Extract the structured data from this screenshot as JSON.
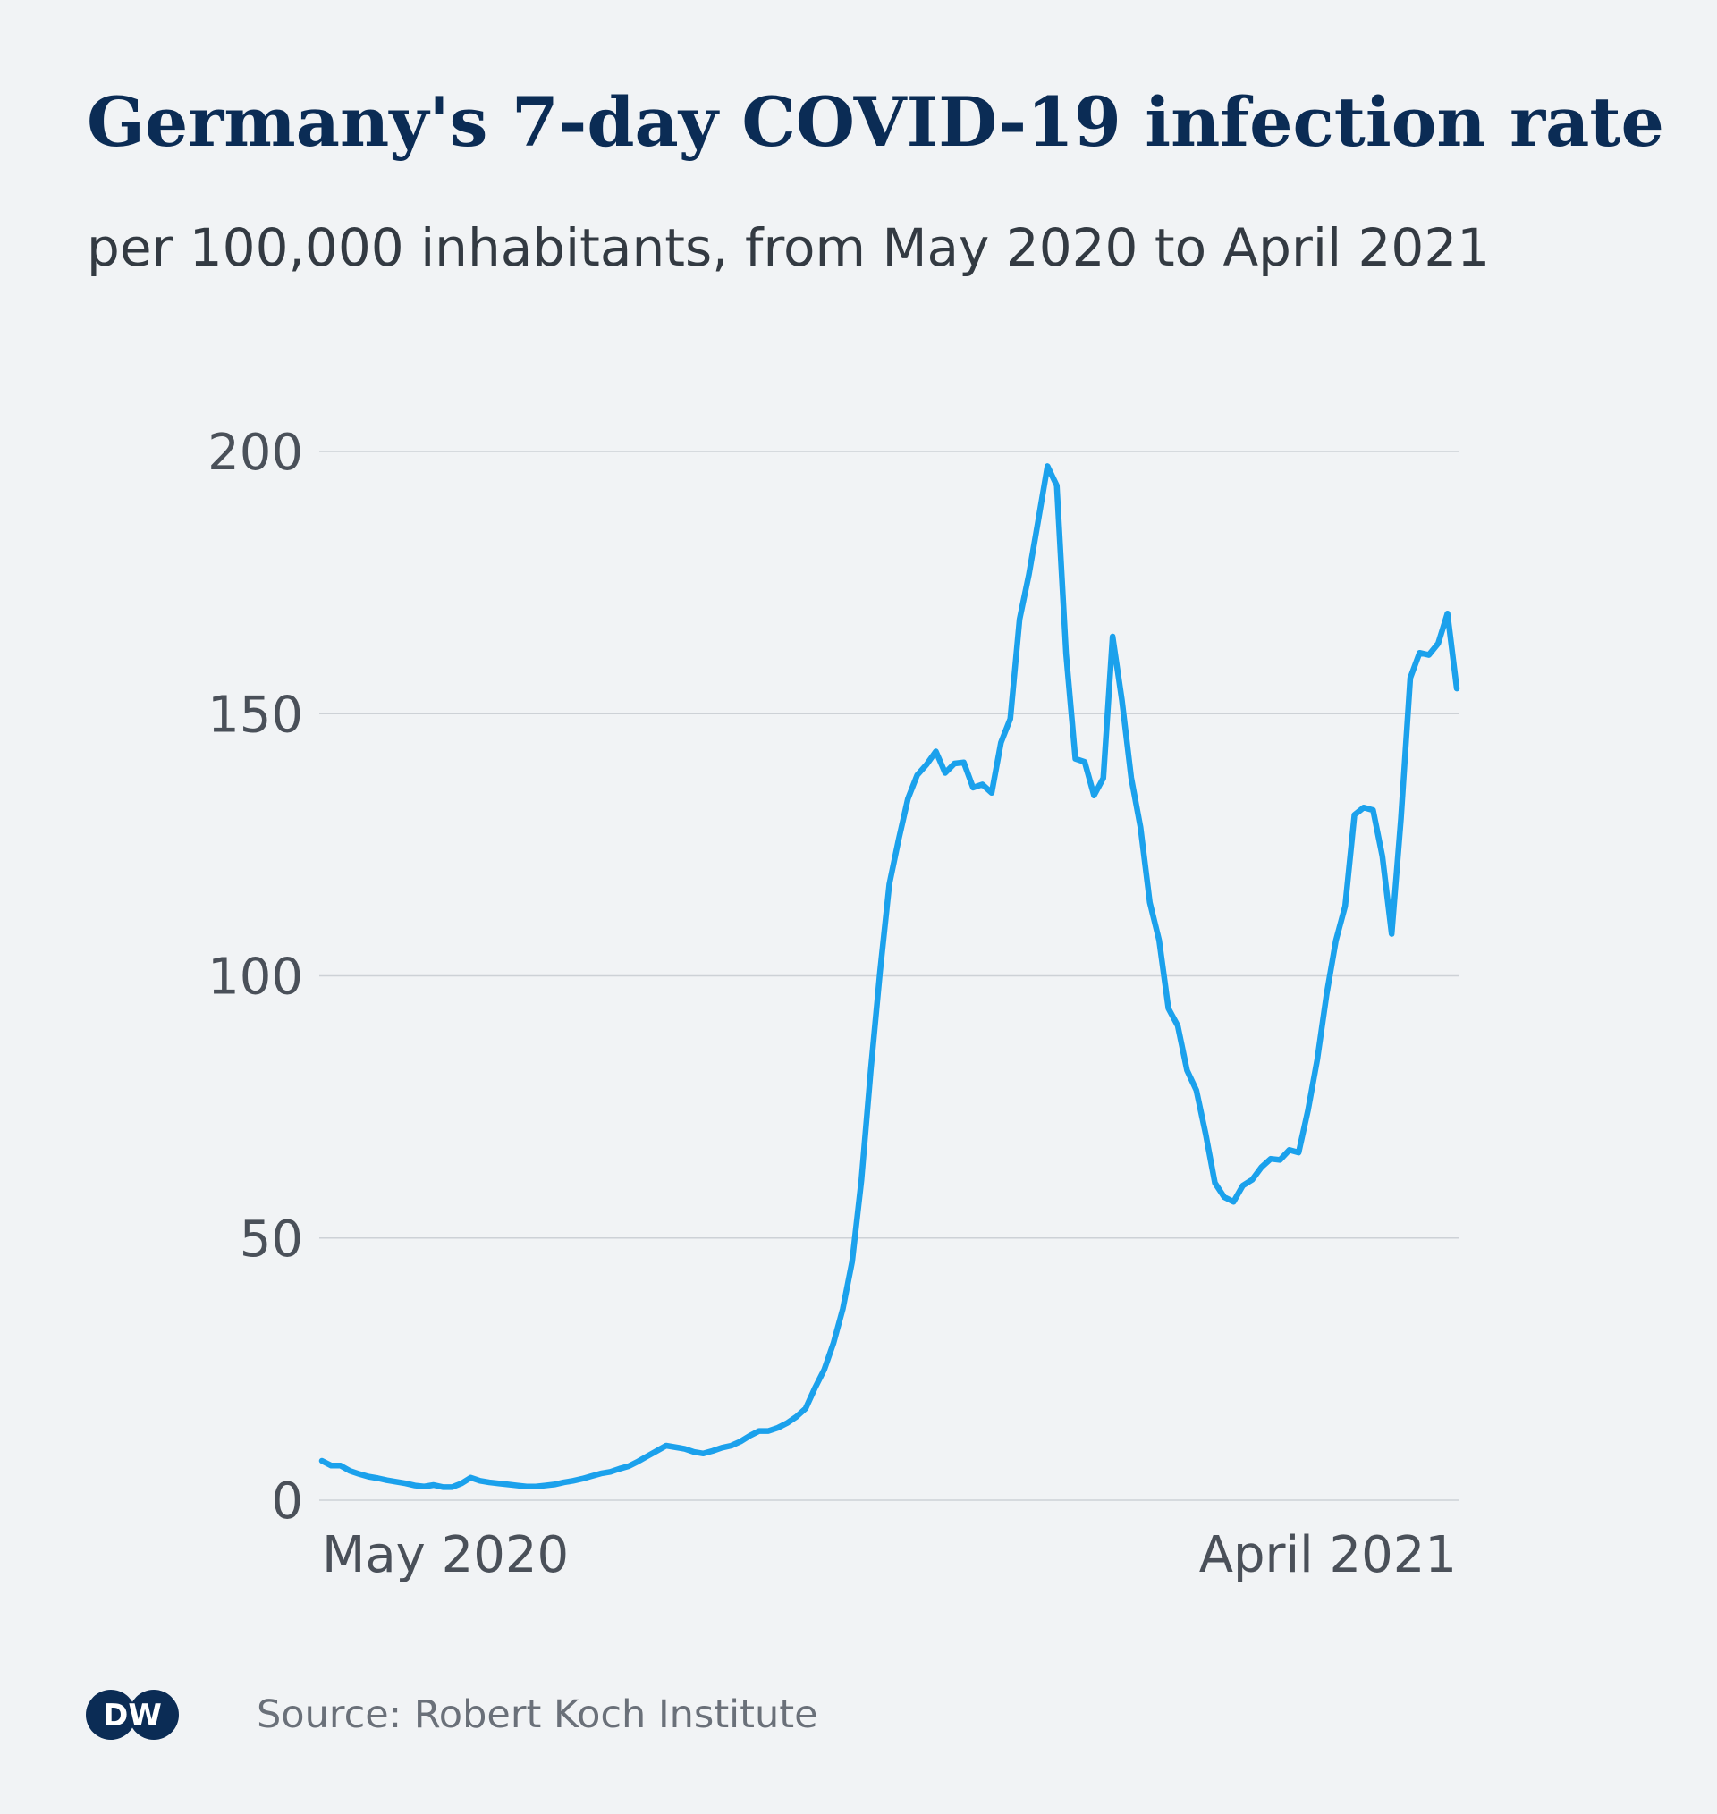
{
  "chart_data": {
    "type": "line",
    "title": "Germany's 7-day COVID-19 infection rate",
    "subtitle": "per 100,000 inhabitants, from May 2020 to April 2021",
    "source": "Source: Robert Koch Institute",
    "logo": "DW",
    "color": "#1ba1ec",
    "grid": true,
    "ylim": [
      0,
      200
    ],
    "yticks": [
      0,
      50,
      100,
      150,
      200
    ],
    "categories": [
      "May 2020",
      null,
      null,
      null,
      null,
      null,
      null,
      null,
      null,
      null,
      null,
      null,
      null,
      null,
      null,
      null,
      null,
      null,
      null,
      null,
      null,
      null,
      null,
      null,
      null,
      null,
      null,
      null,
      null,
      null,
      null,
      null,
      null,
      null,
      null,
      null,
      null,
      null,
      null,
      null,
      null,
      null,
      null,
      null,
      null,
      null,
      null,
      null,
      null,
      null,
      null,
      null,
      null,
      null,
      null,
      null,
      null,
      null,
      null,
      null,
      null,
      null,
      null,
      null,
      null,
      null,
      null,
      null,
      null,
      null,
      null,
      null,
      null,
      null,
      null,
      null,
      null,
      null,
      null,
      null,
      null,
      null,
      null,
      null,
      null,
      null,
      null,
      null,
      null,
      null,
      null,
      null,
      null,
      null,
      null,
      null,
      null,
      null,
      null,
      null,
      null,
      null,
      null,
      null,
      null,
      null,
      null,
      null,
      null,
      null,
      null,
      null,
      null,
      null,
      null,
      null,
      null,
      null,
      null,
      null,
      null,
      null,
      "April 2021"
    ],
    "values": [
      7.5,
      6.6,
      6.6,
      5.6,
      5.0,
      4.5,
      4.2,
      3.8,
      3.5,
      3.2,
      2.8,
      2.6,
      2.9,
      2.5,
      2.5,
      3.2,
      4.3,
      3.7,
      3.4,
      3.2,
      3.0,
      2.8,
      2.6,
      2.6,
      2.8,
      3.0,
      3.4,
      3.7,
      4.1,
      4.6,
      5.1,
      5.4,
      6.0,
      6.5,
      7.4,
      8.4,
      9.4,
      10.4,
      10.1,
      9.8,
      9.2,
      8.9,
      9.4,
      10.0,
      10.4,
      11.2,
      12.3,
      13.2,
      13.2,
      13.8,
      14.7,
      15.9,
      17.5,
      21.4,
      24.9,
      30.0,
      36.5,
      45.5,
      61.1,
      82.0,
      100.8,
      117.5,
      126.0,
      133.8,
      138.3,
      140.3,
      142.8,
      138.7,
      140.5,
      140.7,
      135.9,
      136.5,
      134.9,
      144.5,
      149.0,
      168.0,
      176.5,
      186.8,
      197.2,
      193.5,
      161.4,
      141.4,
      140.8,
      134.4,
      137.7,
      164.7,
      152.6,
      137.8,
      128.3,
      114.0,
      106.8,
      93.8,
      90.5,
      82.0,
      78.2,
      69.9,
      60.5,
      57.8,
      56.9,
      60.0,
      61.1,
      63.5,
      65.1,
      64.9,
      66.8,
      66.3,
      74.3,
      84.0,
      96.4,
      106.7,
      113.3,
      130.7,
      132.1,
      131.6,
      122.8,
      108.0,
      130.0,
      156.8,
      161.6,
      161.2,
      163.4,
      169.1,
      154.8
    ]
  }
}
